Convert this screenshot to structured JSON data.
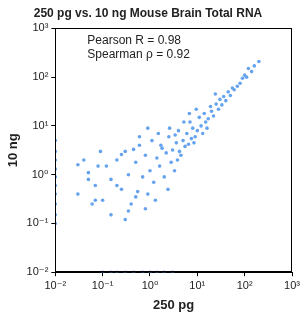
{
  "chart_data": {
    "type": "scatter",
    "title": "250 pg vs. 10 ng Mouse Brain Total RNA",
    "x_label": "250 pg",
    "y_label": "10 ng",
    "annotations": [
      "Pearson R = 0.98",
      "Spearman ρ = 0.92"
    ],
    "color": "#66a3ee",
    "marker": "circle",
    "log": true,
    "grid": false,
    "xlim": [
      0.01,
      1000
    ],
    "ylim": [
      0.01,
      1000
    ],
    "xticks": [
      {
        "value": 0.01,
        "label": "10⁻²"
      },
      {
        "value": 0.1,
        "label": "10⁻¹"
      },
      {
        "value": 1,
        "label": "10⁰"
      },
      {
        "value": 10,
        "label": "10¹"
      },
      {
        "value": 100,
        "label": "10²"
      },
      {
        "value": 1000,
        "label": "10³"
      }
    ],
    "yticks": [
      {
        "value": 0.01,
        "label": "10⁻²"
      },
      {
        "value": 0.1,
        "label": "10⁻¹"
      },
      {
        "value": 1,
        "label": "10⁰"
      },
      {
        "value": 10,
        "label": "10¹"
      },
      {
        "value": 100,
        "label": "10²"
      },
      {
        "value": 1000,
        "label": "10³"
      }
    ],
    "x": [
      0.1,
      0.12,
      0.15,
      0.2,
      0.25,
      0.3,
      0.35,
      0.4,
      0.5,
      0.6,
      0.7,
      0.8,
      0.9,
      1,
      1.1,
      1.2,
      1.4,
      1.6,
      1.8,
      2,
      2.2,
      2.5,
      2.8,
      3,
      3.3,
      3.6,
      4,
      4.5,
      5,
      5.5,
      6,
      6.5,
      7,
      7.5,
      8,
      9,
      10,
      11,
      12,
      13,
      14,
      15,
      17,
      19,
      20,
      22,
      25,
      28,
      30,
      33,
      36,
      40,
      45,
      50,
      55,
      60,
      70,
      80,
      90,
      100,
      110,
      120,
      140,
      160,
      200,
      0.15,
      0.2,
      0.3,
      0.5,
      0.8,
      1.3,
      0.25,
      0.6,
      1.5,
      0.35,
      2.4,
      0.45,
      0.9,
      3.8,
      0.55,
      0.03,
      0.05,
      0.07,
      0.04,
      0.06,
      0.08,
      0.05,
      0.09,
      0.03,
      0.07,
      1.7,
      2.6,
      3.4,
      4.2,
      5.2,
      6.8,
      8.5,
      9.5,
      16,
      24,
      0.01,
      0.01,
      0.01,
      0.01,
      0.01,
      0.01,
      0.01,
      0.01,
      0.01,
      0.01,
      0.1,
      0.15,
      0.2,
      0.3,
      0.45,
      0.7,
      1,
      1.4,
      2,
      3
    ],
    "values": [
      0.3,
      1.5,
      0.8,
      2,
      0.5,
      3,
      1,
      0.25,
      1.8,
      4,
      0.9,
      2.5,
      0.4,
      1.2,
      5,
      0.7,
      2.2,
      1.5,
      3.5,
      0.9,
      2.8,
      6,
      1.8,
      3.2,
      1.2,
      4.5,
      8,
      2.5,
      5,
      3.8,
      7,
      4.2,
      12,
      5.5,
      9,
      6,
      8,
      15,
      10,
      7,
      18,
      12,
      14,
      25,
      20,
      16,
      28,
      22,
      35,
      27,
      40,
      33,
      50,
      42,
      60,
      55,
      65,
      75,
      95,
      110,
      100,
      150,
      130,
      170,
      210,
      0.15,
      0.6,
      0.12,
      0.35,
      0.2,
      0.3,
      2.6,
      6,
      7,
      0.18,
      0.5,
      3.3,
      9,
      2,
      0.45,
      0.4,
      1.1,
      0.6,
      2,
      0.25,
      1.5,
      0.8,
      3,
      1.6,
      0.3,
      4,
      9,
      6.5,
      3,
      12,
      18,
      4.5,
      22,
      9,
      45,
      0.1,
      0.15,
      0.25,
      0.4,
      0.6,
      0.9,
      1.3,
      2,
      3,
      5,
      0.01,
      0.01,
      0.01,
      0.01,
      0.01,
      0.01,
      0.01,
      0.01,
      0.01,
      0.01
    ]
  }
}
